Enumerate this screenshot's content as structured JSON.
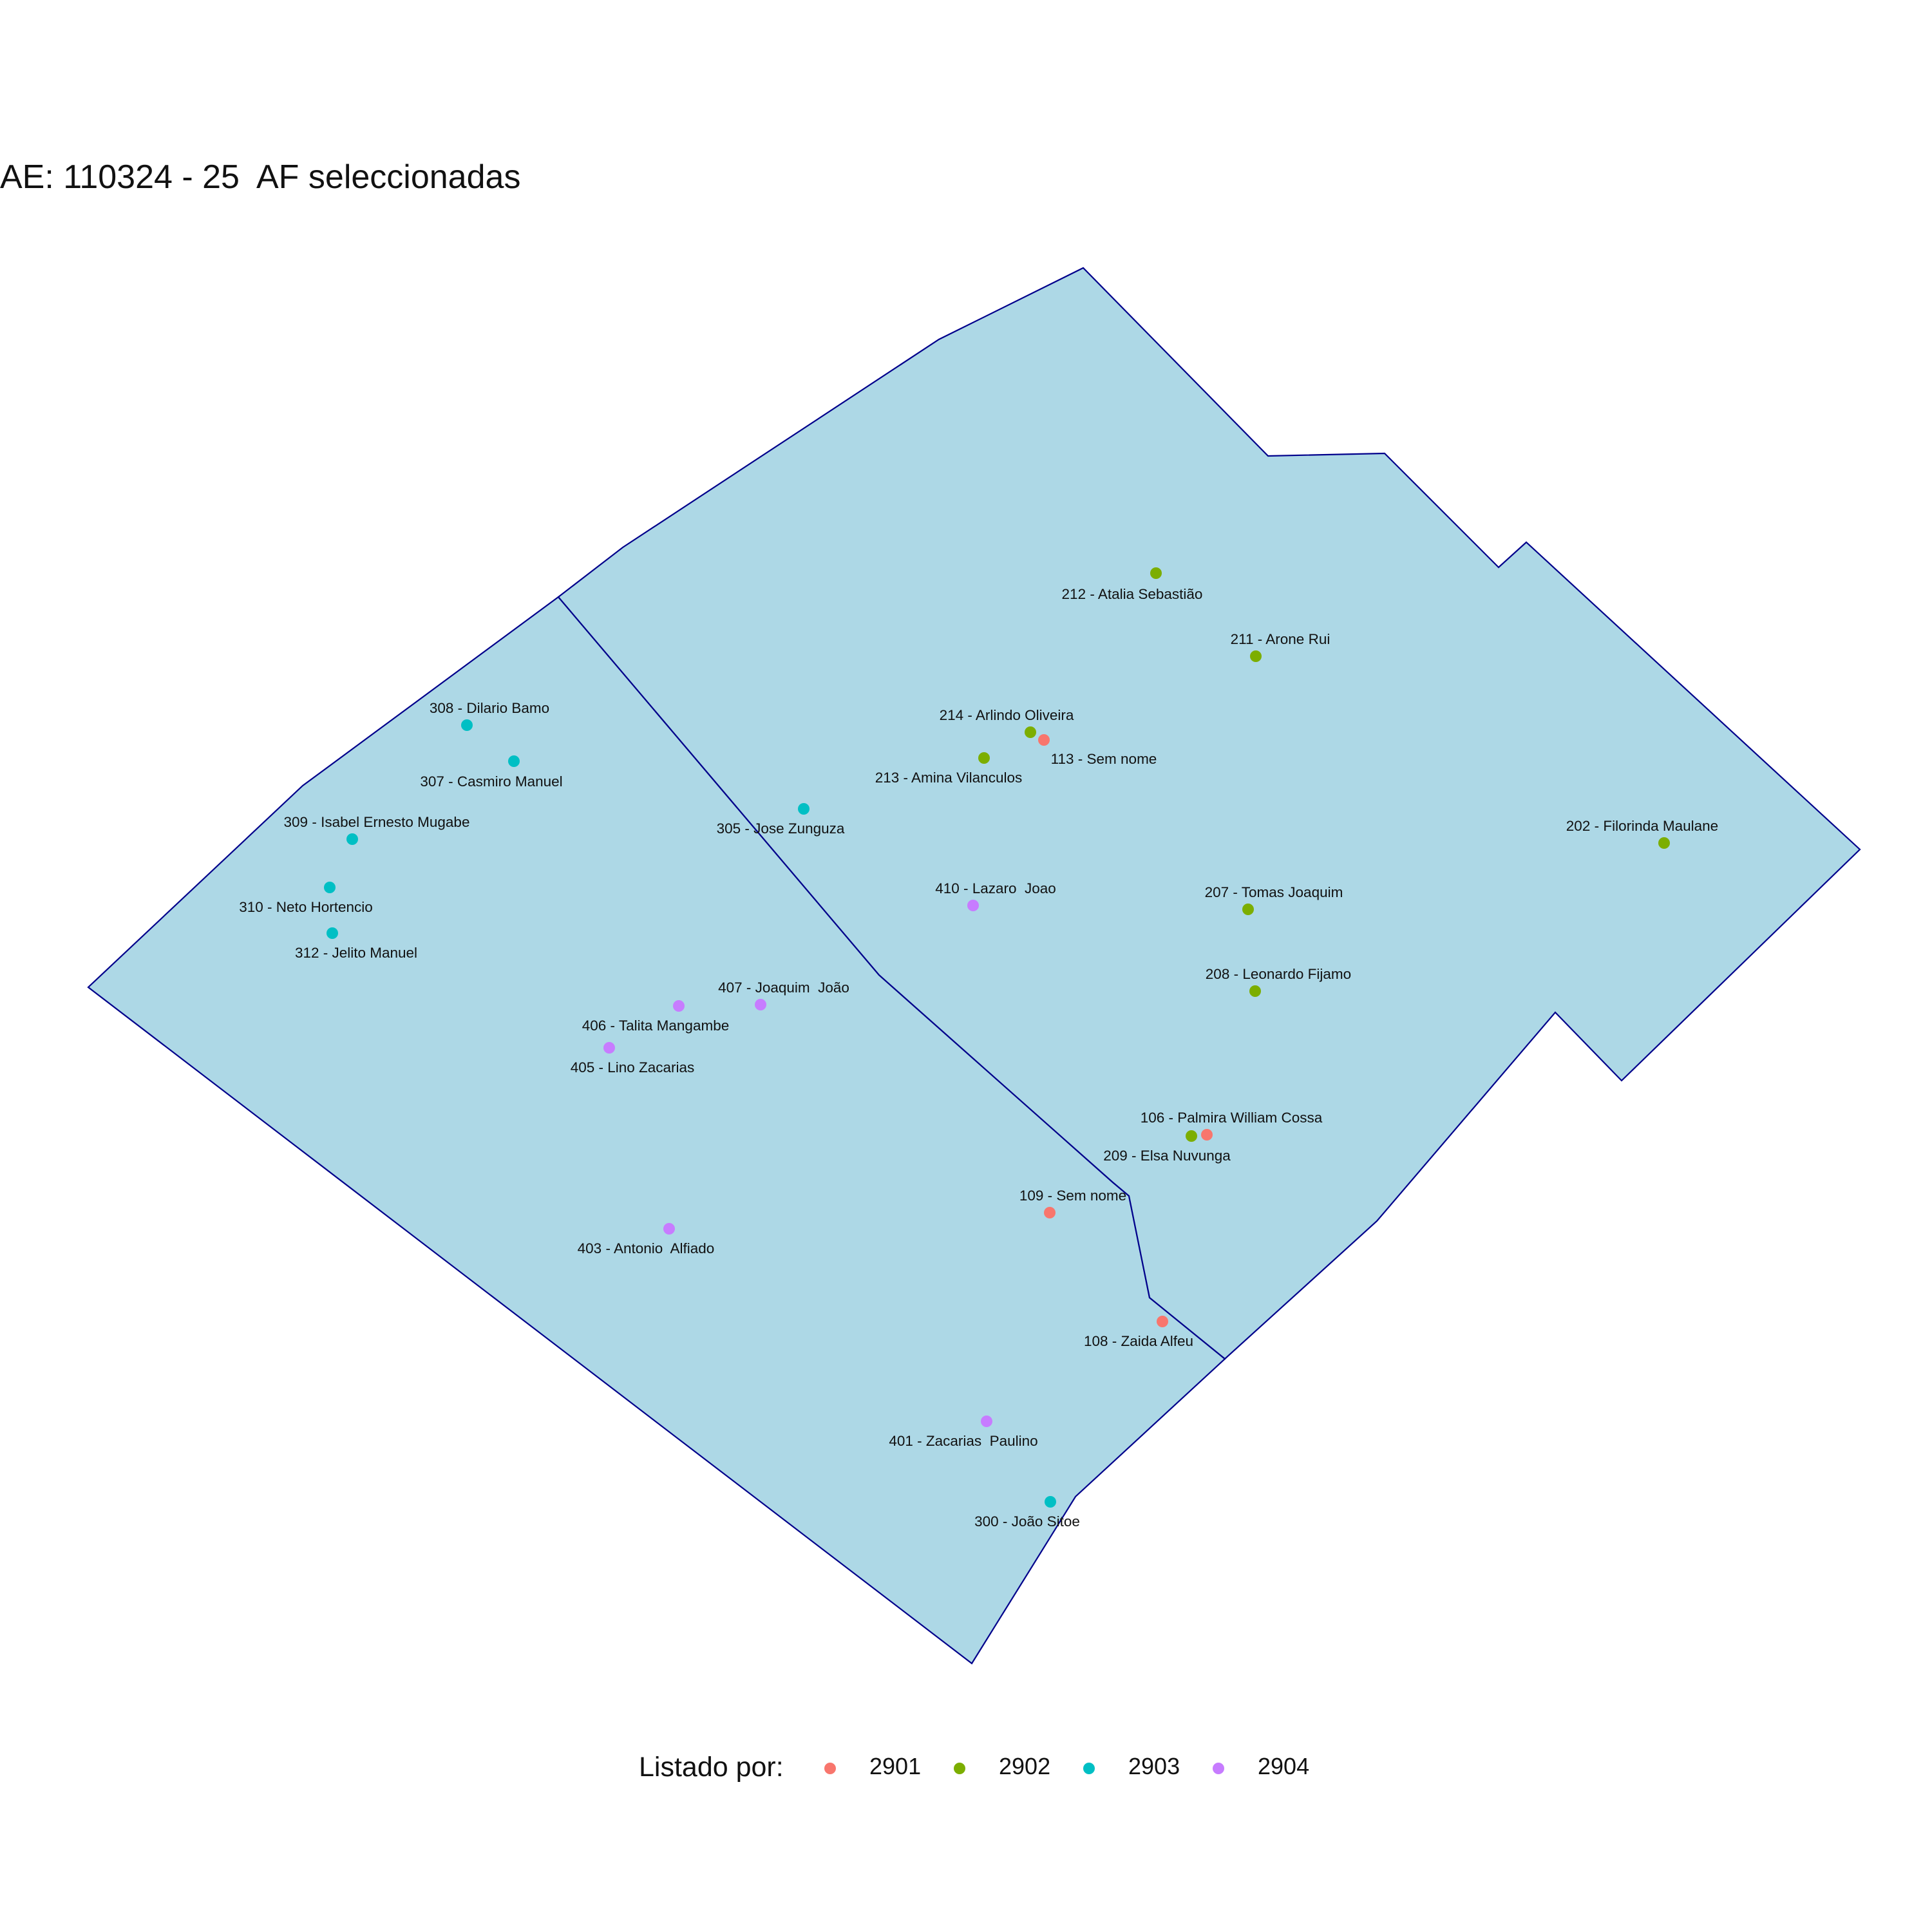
{
  "title": "AE: 110324 - 25  AF seleccionadas",
  "legend": {
    "title": "Listado por:",
    "items": [
      {
        "label": "2901",
        "color": "#f8766d"
      },
      {
        "label": "2902",
        "color": "#7cae00"
      },
      {
        "label": "2903",
        "color": "#00bfc4"
      },
      {
        "label": "2904",
        "color": "#c77cff"
      }
    ]
  },
  "map_data": {
    "fill_color": "#add8e6",
    "border_color": "#00008b",
    "points": [
      {
        "label": "212 - Atalia Sebastião",
        "group": "2902"
      },
      {
        "label": "211 - Arone Rui",
        "group": "2902"
      },
      {
        "label": "214 - Arlindo Oliveira",
        "group": "2902"
      },
      {
        "label": "113 - Sem nome",
        "group": "2901"
      },
      {
        "label": "213 - Amina Vilanculos",
        "group": "2902"
      },
      {
        "label": "202 - Filorinda Maulane",
        "group": "2902"
      },
      {
        "label": "207 - Tomas Joaquim",
        "group": "2902"
      },
      {
        "label": "208 - Leonardo Fijamo",
        "group": "2902"
      },
      {
        "label": "106 - Palmira William Cossa",
        "group": "2901"
      },
      {
        "label": "209 - Elsa Nuvunga",
        "group": "2902"
      },
      {
        "label": "109 - Sem nome",
        "group": "2901"
      },
      {
        "label": "108 - Zaida Alfeu",
        "group": "2901"
      },
      {
        "label": "308 - Dilario Bamo",
        "group": "2903"
      },
      {
        "label": "307 - Casmiro Manuel",
        "group": "2903"
      },
      {
        "label": "309 - Isabel Ernesto Mugabe",
        "group": "2903"
      },
      {
        "label": "310 - Neto Hortencio",
        "group": "2903"
      },
      {
        "label": "312 - Jelito Manuel",
        "group": "2903"
      },
      {
        "label": "305 - Jose Zunguza",
        "group": "2903"
      },
      {
        "label": "300 - João Sitoe",
        "group": "2903"
      },
      {
        "label": "410 - Lazaro  Joao",
        "group": "2904"
      },
      {
        "label": "407 - Joaquim  João",
        "group": "2904"
      },
      {
        "label": "406 - Talita Mangambe",
        "group": "2904"
      },
      {
        "label": "405 - Lino Zacarias",
        "group": "2904"
      },
      {
        "label": "403 - Antonio  Alfiado",
        "group": "2904"
      },
      {
        "label": "401 - Zacarias  Paulino",
        "group": "2904"
      }
    ]
  }
}
